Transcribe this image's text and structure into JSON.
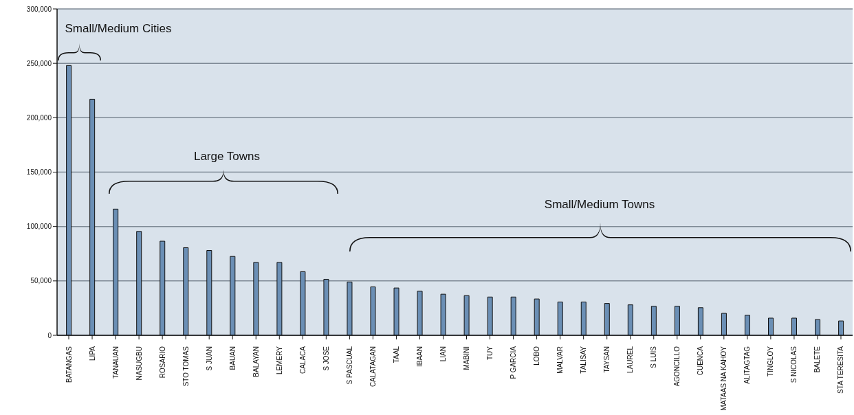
{
  "chart_data": {
    "type": "bar",
    "categories": [
      "BATANGAS",
      "LIPA",
      "TANAUAN",
      "NASUGBU",
      "ROSARIO",
      "STO TOMAS",
      "S JUAN",
      "BAUAN",
      "BALAYAN",
      "LEMERY",
      "CALACA",
      "S JOSE",
      "S PASCUAL",
      "CALATAGAN",
      "TAAL",
      "IBAAN",
      "LIAN",
      "MABINI",
      "TUY",
      "P GARCIA",
      "LOBO",
      "MALVAR",
      "TALISAY",
      "TAYSAN",
      "LAUREL",
      "S LUIS",
      "AGONCILLO",
      "CUENCA",
      "MATAAS NA KAHOY",
      "ALITAGTAG",
      "TINGLOY",
      "S NICOLAS",
      "BALETE",
      "STA TERESITA"
    ],
    "values": [
      248000,
      217000,
      116000,
      95500,
      86500,
      80500,
      78000,
      72500,
      67000,
      67000,
      58500,
      51500,
      49000,
      44500,
      43500,
      40500,
      37800,
      36500,
      35200,
      35200,
      33400,
      30600,
      30600,
      29300,
      28000,
      26700,
      26700,
      25400,
      20200,
      18400,
      15800,
      15800,
      14500,
      13200
    ],
    "color": "#6b8fb5",
    "ylim": [
      0,
      300000
    ],
    "yticks": [
      0,
      {
        "value": 50000,
        "label": "50,000"
      },
      {
        "value": 100000,
        "label": "100,000"
      },
      {
        "value": 150000,
        "label": "150,000"
      },
      {
        "value": 200000,
        "label": "200,000"
      },
      {
        "value": 250000,
        "label": "250,000"
      },
      {
        "value": 300000,
        "label": "300,000"
      }
    ],
    "grid": "y",
    "annotations": [
      "Small/Medium Cities",
      "Large Towns",
      "Small/Medium Towns"
    ]
  }
}
